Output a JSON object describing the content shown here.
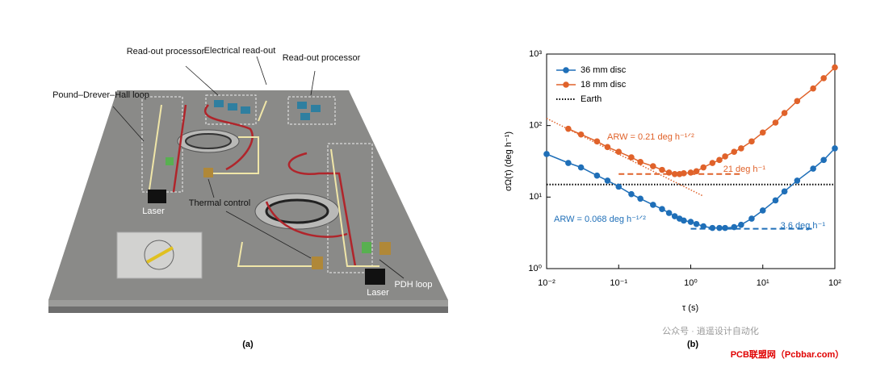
{
  "diagram": {
    "panel_label": "(a)",
    "labels": [
      "Read-out processor",
      "Electrical read-out",
      "Read-out processor",
      "Pound–Drever–Hall loop",
      "Laser",
      "Thermal control",
      "Laser",
      "PDH loop"
    ]
  },
  "chart_data": {
    "type": "line",
    "panel_label": "(b)",
    "xlabel": "τ (s)",
    "ylabel": "σΩ(τ) (deg h⁻¹)",
    "xscale": "log",
    "yscale": "log",
    "xlim": [
      0.01,
      100
    ],
    "ylim": [
      1,
      1000
    ],
    "xticks": [
      {
        "value": 0.01,
        "label": "10⁻²"
      },
      {
        "value": 0.1,
        "label": "10⁻¹"
      },
      {
        "value": 1,
        "label": "10⁰"
      },
      {
        "value": 10,
        "label": "10¹"
      },
      {
        "value": 100,
        "label": "10²"
      }
    ],
    "yticks": [
      {
        "value": 1,
        "label": "10⁰"
      },
      {
        "value": 10,
        "label": "10¹"
      },
      {
        "value": 100,
        "label": "10²"
      },
      {
        "value": 1000,
        "label": "10³"
      }
    ],
    "legend": "upper left",
    "x": [
      0.01,
      0.02,
      0.03,
      0.05,
      0.07,
      0.1,
      0.15,
      0.2,
      0.3,
      0.4,
      0.5,
      0.6,
      0.7,
      0.8,
      1,
      1.2,
      1.5,
      2,
      2.5,
      3,
      4,
      5,
      7,
      10,
      15,
      20,
      30,
      50,
      70,
      100
    ],
    "series": [
      {
        "name": "36 mm disc",
        "color": "#1f6fb8",
        "values": [
          40,
          30,
          26,
          20,
          17,
          14,
          11,
          9.5,
          7.8,
          6.8,
          6,
          5.4,
          5,
          4.7,
          4.5,
          4.2,
          3.9,
          3.7,
          3.7,
          3.7,
          3.8,
          4.1,
          5,
          6.5,
          9,
          12,
          17,
          25,
          33,
          48
        ]
      },
      {
        "name": "18 mm disc",
        "color": "#e0622a",
        "values": [
          null,
          90,
          75,
          60,
          50,
          43,
          36,
          31,
          27,
          24,
          22,
          21,
          21,
          21.5,
          22,
          23,
          26,
          30,
          33,
          37,
          43,
          48,
          60,
          80,
          110,
          150,
          220,
          330,
          460,
          650
        ]
      }
    ],
    "earth": {
      "name": "Earth",
      "value": 15,
      "color": "#000000"
    },
    "arw_line": {
      "color": "#e0622a",
      "x": [
        0.01,
        1.5
      ],
      "values": [
        126,
        10.3
      ]
    },
    "reference_lines": [
      {
        "color": "#e0622a",
        "value": 21,
        "x": [
          0.1,
          5
        ]
      },
      {
        "color": "#1f6fb8",
        "value": 3.6,
        "x": [
          1,
          50
        ]
      }
    ],
    "annotations": [
      {
        "text": "ARW = 0.21 deg h⁻¹ᐟ²",
        "color": "#e0622a"
      },
      {
        "text": "21 deg h⁻¹",
        "color": "#e0622a"
      },
      {
        "text": "ARW = 0.068 deg h⁻¹ᐟ²",
        "color": "#1f6fb8"
      },
      {
        "text": "3.6 deg h⁻¹",
        "color": "#1f6fb8"
      }
    ]
  },
  "watermark": [
    "公众号 · 逍遥设计自动化",
    "PCB联盟网（Pcbbar.com）"
  ]
}
